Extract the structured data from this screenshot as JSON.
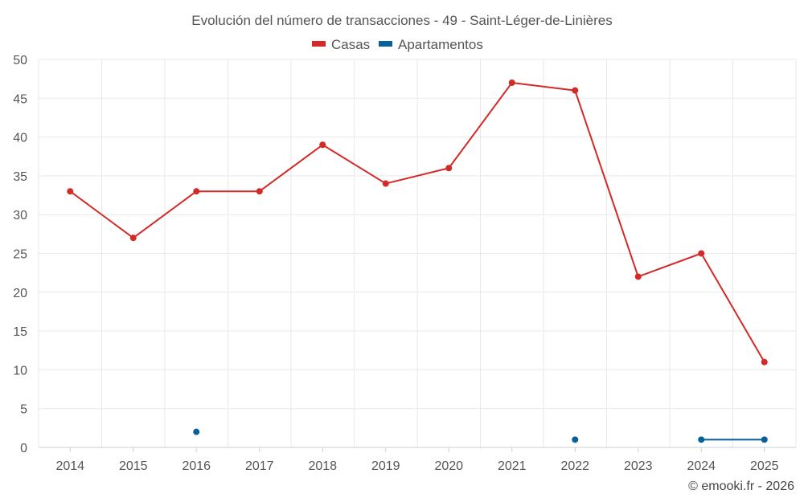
{
  "chart_data": {
    "type": "line",
    "title": "Evolución del número de transacciones - 49 - Saint-Léger-de-Linières",
    "categories": [
      "2014",
      "2015",
      "2016",
      "2017",
      "2018",
      "2019",
      "2020",
      "2021",
      "2022",
      "2023",
      "2024",
      "2025"
    ],
    "series": [
      {
        "name": "Casas",
        "color": "#d32a27",
        "values": [
          33,
          27,
          33,
          33,
          39,
          34,
          36,
          47,
          46,
          22,
          25,
          11
        ]
      },
      {
        "name": "Apartamentos",
        "color": "#07609a",
        "values": [
          null,
          null,
          2,
          null,
          null,
          null,
          null,
          null,
          1,
          null,
          1,
          1
        ]
      }
    ],
    "ylim": [
      0,
      50
    ],
    "yticks": [
      0,
      5,
      10,
      15,
      20,
      25,
      30,
      35,
      40,
      45,
      50
    ],
    "grid": true,
    "legend_position": "top-center",
    "xlabel": "",
    "ylabel": ""
  },
  "credit": "© emooki.fr - 2026"
}
